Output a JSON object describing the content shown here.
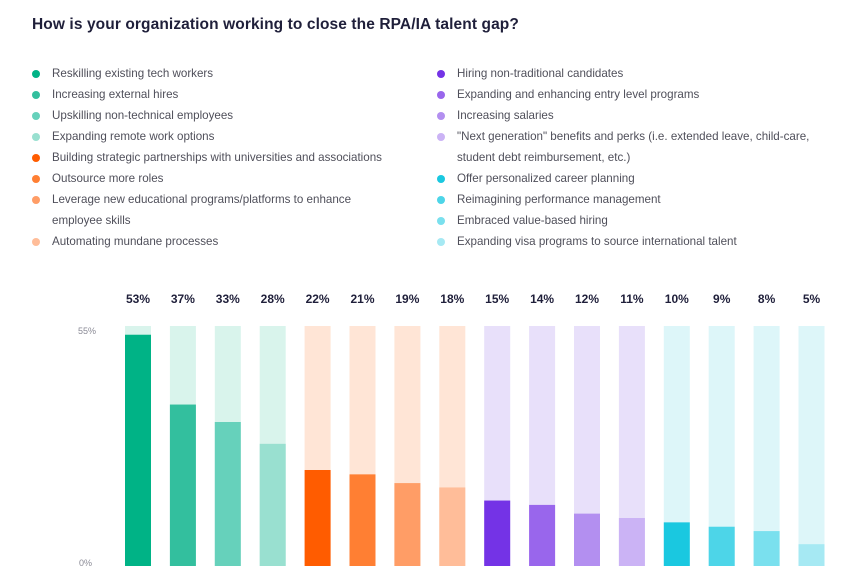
{
  "chart_data": {
    "type": "bar",
    "title": "How is your organization working to close the RPA/IA talent gap?",
    "categories": [
      "Reskilling existing tech workers",
      "Increasing external hires",
      "Upskilling non-technical employees",
      "Expanding remote work options",
      "Building strategic partnerships with universities and associations",
      "Outsource more roles",
      "Leverage new educational programs/platforms to enhance employee skills",
      "Automating mundane processes",
      "Hiring non-traditional candidates",
      "Expanding and enhancing entry level programs",
      "Increasing salaries",
      "\"Next generation\" benefits and perks (i.e. extended leave, child-care, student debt reimbursement, etc.)",
      "Offer personalized career planning",
      "Reimagining performance management",
      "Embraced value-based hiring",
      "Expanding visa programs to source international talent"
    ],
    "values": [
      53,
      37,
      33,
      28,
      22,
      21,
      19,
      18,
      15,
      14,
      12,
      11,
      10,
      9,
      8,
      5
    ],
    "value_labels": [
      "53%",
      "37%",
      "33%",
      "28%",
      "22%",
      "21%",
      "19%",
      "18%",
      "15%",
      "14%",
      "12%",
      "11%",
      "10%",
      "9%",
      "8%",
      "5%"
    ],
    "colors": [
      "#00b386",
      "#33bf9e",
      "#66d1bb",
      "#99e0d0",
      "#ff5c00",
      "#ff7f33",
      "#ff9d66",
      "#ffbd99",
      "#7433e6",
      "#9966ec",
      "#b38ff0",
      "#cbb3f5",
      "#1ac8e0",
      "#4dd5e8",
      "#7ae0ee",
      "#a6e9f3"
    ],
    "track_colors": [
      "#d9f4ec",
      "#d9f4ec",
      "#d9f4ec",
      "#d9f4ec",
      "#ffe5d6",
      "#ffe5d6",
      "#ffe5d6",
      "#ffe5d6",
      "#e8e0fa",
      "#e8e0fa",
      "#e8e0fa",
      "#e8e0fa",
      "#ddf6f9",
      "#ddf6f9",
      "#ddf6f9",
      "#ddf6f9"
    ],
    "ylim": [
      0,
      55
    ],
    "y_tick_labels": {
      "top": "55%",
      "bottom": "0%"
    },
    "xlabel": "",
    "ylabel": "",
    "legend": "top, two columns"
  }
}
